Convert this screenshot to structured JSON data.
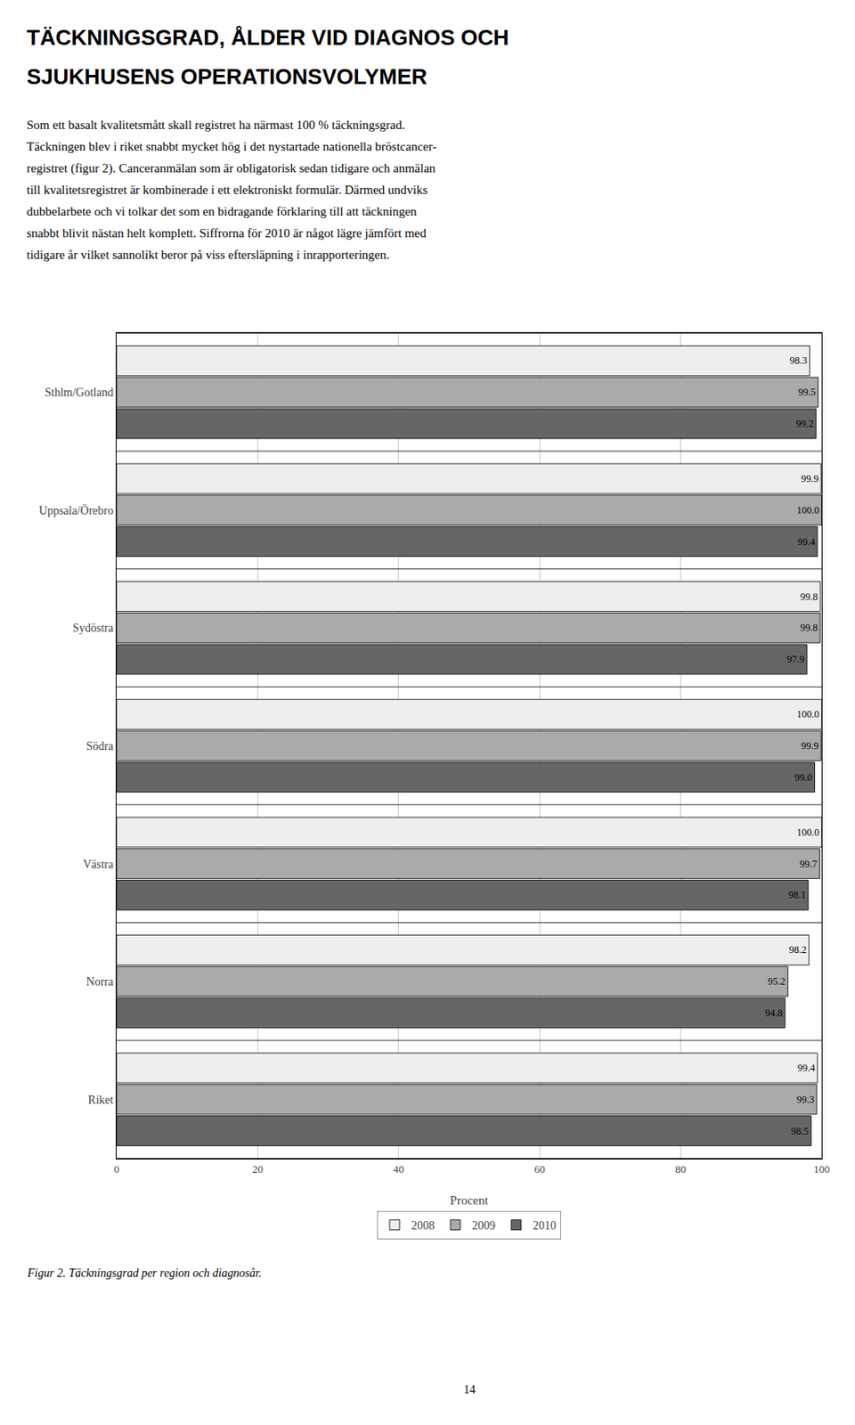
{
  "chart_data": {
    "type": "bar",
    "orientation": "horizontal",
    "title": "TÄCKNINGSGRAD, ÅLDER VID DIAGNOS OCH",
    "subtitle": "SJUKHUSENS OPERATIONSVOLYMER",
    "body_text": [
      "Som ett basalt kvalitetsmått skall registret ha närmast 100 % täckningsgrad.",
      "Täckningen blev i riket snabbt mycket hög i det nystartade nationella bröstcancer-",
      "registret (figur 2). Canceranmälan som är obligatorisk sedan tidigare och anmälan",
      "till kvalitetsregistret är kombinerade i ett elektroniskt formulär. Därmed undviks",
      "dubbelarbete och vi tolkar det som en bidragande förklaring till att täckningen",
      "snabbt blivit nästan helt komplett. Siffrorna för 2010 är något lägre jämfört med",
      "tidigare år vilket sannolikt beror på viss eftersläpning i inrapporteringen."
    ],
    "categories": [
      "Sthlm/Gotland",
      "Uppsala/Örebro",
      "Sydöstra",
      "Södra",
      "Västra",
      "Norra",
      "Riket"
    ],
    "series": [
      {
        "name": "2008",
        "color": "#eeeeee",
        "values": [
          98.3,
          99.9,
          99.8,
          100.0,
          100.0,
          98.2,
          99.4
        ],
        "value_labels": [
          "98.3",
          "99.9",
          "99.8",
          "100.0",
          "100.0",
          "98.2",
          "99.4"
        ]
      },
      {
        "name": "2009",
        "color": "#aaaaaa",
        "values": [
          99.5,
          100.0,
          99.8,
          99.9,
          99.7,
          95.2,
          99.3
        ],
        "value_labels": [
          "99.5",
          "100.0",
          "99.8",
          "99.9",
          "99.7",
          "95.2",
          "99.3"
        ]
      },
      {
        "name": "2010",
        "color": "#666666",
        "values": [
          99.2,
          99.4,
          97.9,
          99.0,
          98.1,
          94.8,
          98.5
        ],
        "value_labels": [
          "99.2",
          "99.4",
          "97.9",
          "99.0",
          "98.1",
          "94.8",
          "98.5"
        ]
      }
    ],
    "xlabel": "Procent",
    "xlim": [
      0,
      100
    ],
    "xticks": [
      0,
      20,
      40,
      60,
      80,
      100
    ],
    "grid": true,
    "legend": "bottom",
    "data_labels": true,
    "caption": "Figur 2. Täckningsgrad per region och diagnosår.",
    "page_number": "14"
  }
}
